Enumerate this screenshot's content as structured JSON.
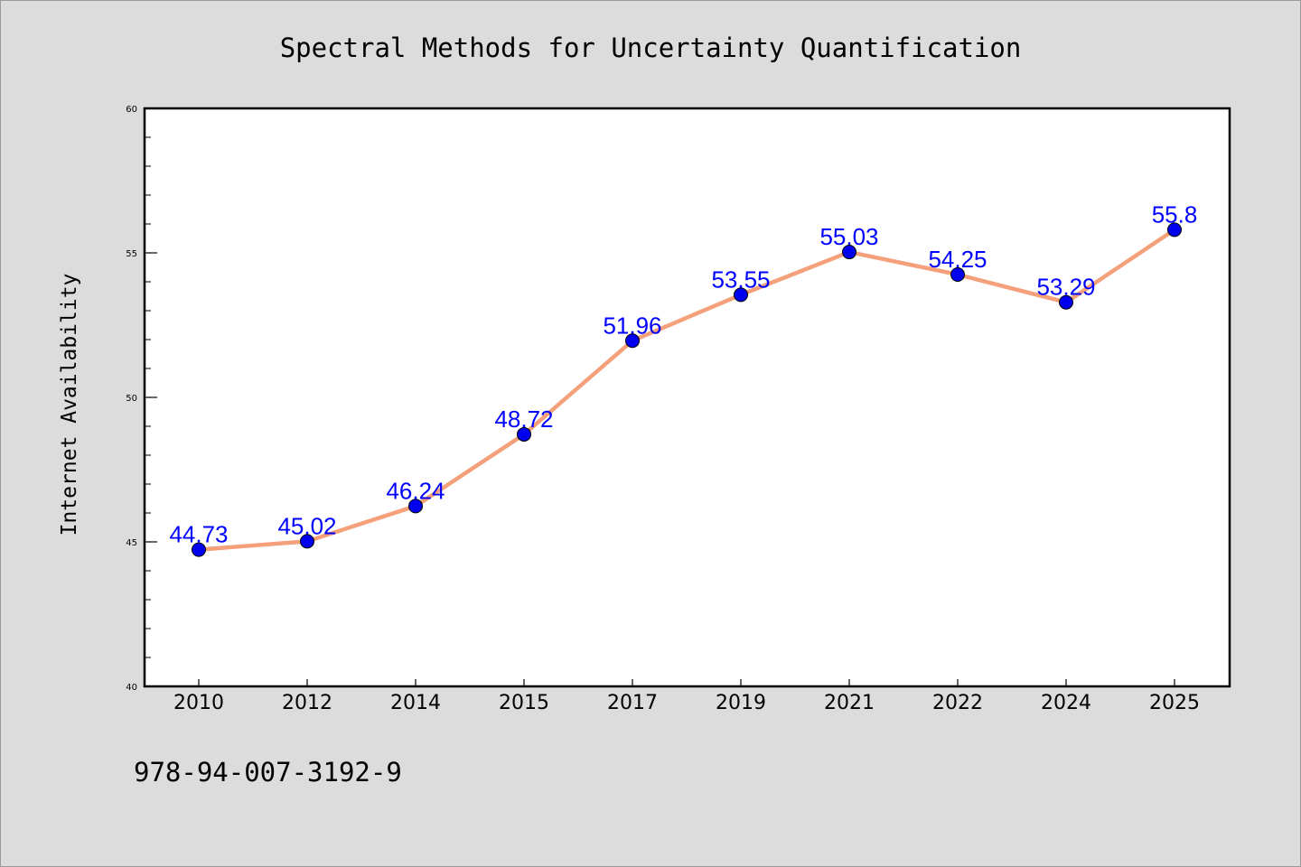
{
  "chart_data": {
    "type": "line",
    "title": "Spectral Methods for Uncertainty Quantification",
    "xlabel": "",
    "ylabel": "Internet Availability",
    "categories": [
      "2010",
      "2012",
      "2014",
      "2015",
      "2017",
      "2019",
      "2021",
      "2022",
      "2024",
      "2025"
    ],
    "series": [
      {
        "values": [
          44.73,
          45.02,
          46.24,
          48.72,
          51.96,
          53.55,
          55.03,
          54.25,
          53.29,
          55.8
        ],
        "data_labels": [
          "44.73",
          "45.02",
          "46.24",
          "48.72",
          "51.96",
          "53.55",
          "55.03",
          "54.25",
          "53.29",
          "55.8"
        ]
      }
    ],
    "ylim": [
      40,
      60
    ],
    "y_major_ticks": [
      "40",
      "45",
      "50",
      "55",
      "60"
    ],
    "grid": false,
    "legend": "none",
    "colors": {
      "line": "#f4a07a",
      "marker": "#0000ee",
      "data_label": "#0000ff",
      "plot_background": "#ffffff",
      "page_background": "#dcdcdc"
    }
  },
  "footer": {
    "isbn": "978-94-007-3192-9"
  }
}
